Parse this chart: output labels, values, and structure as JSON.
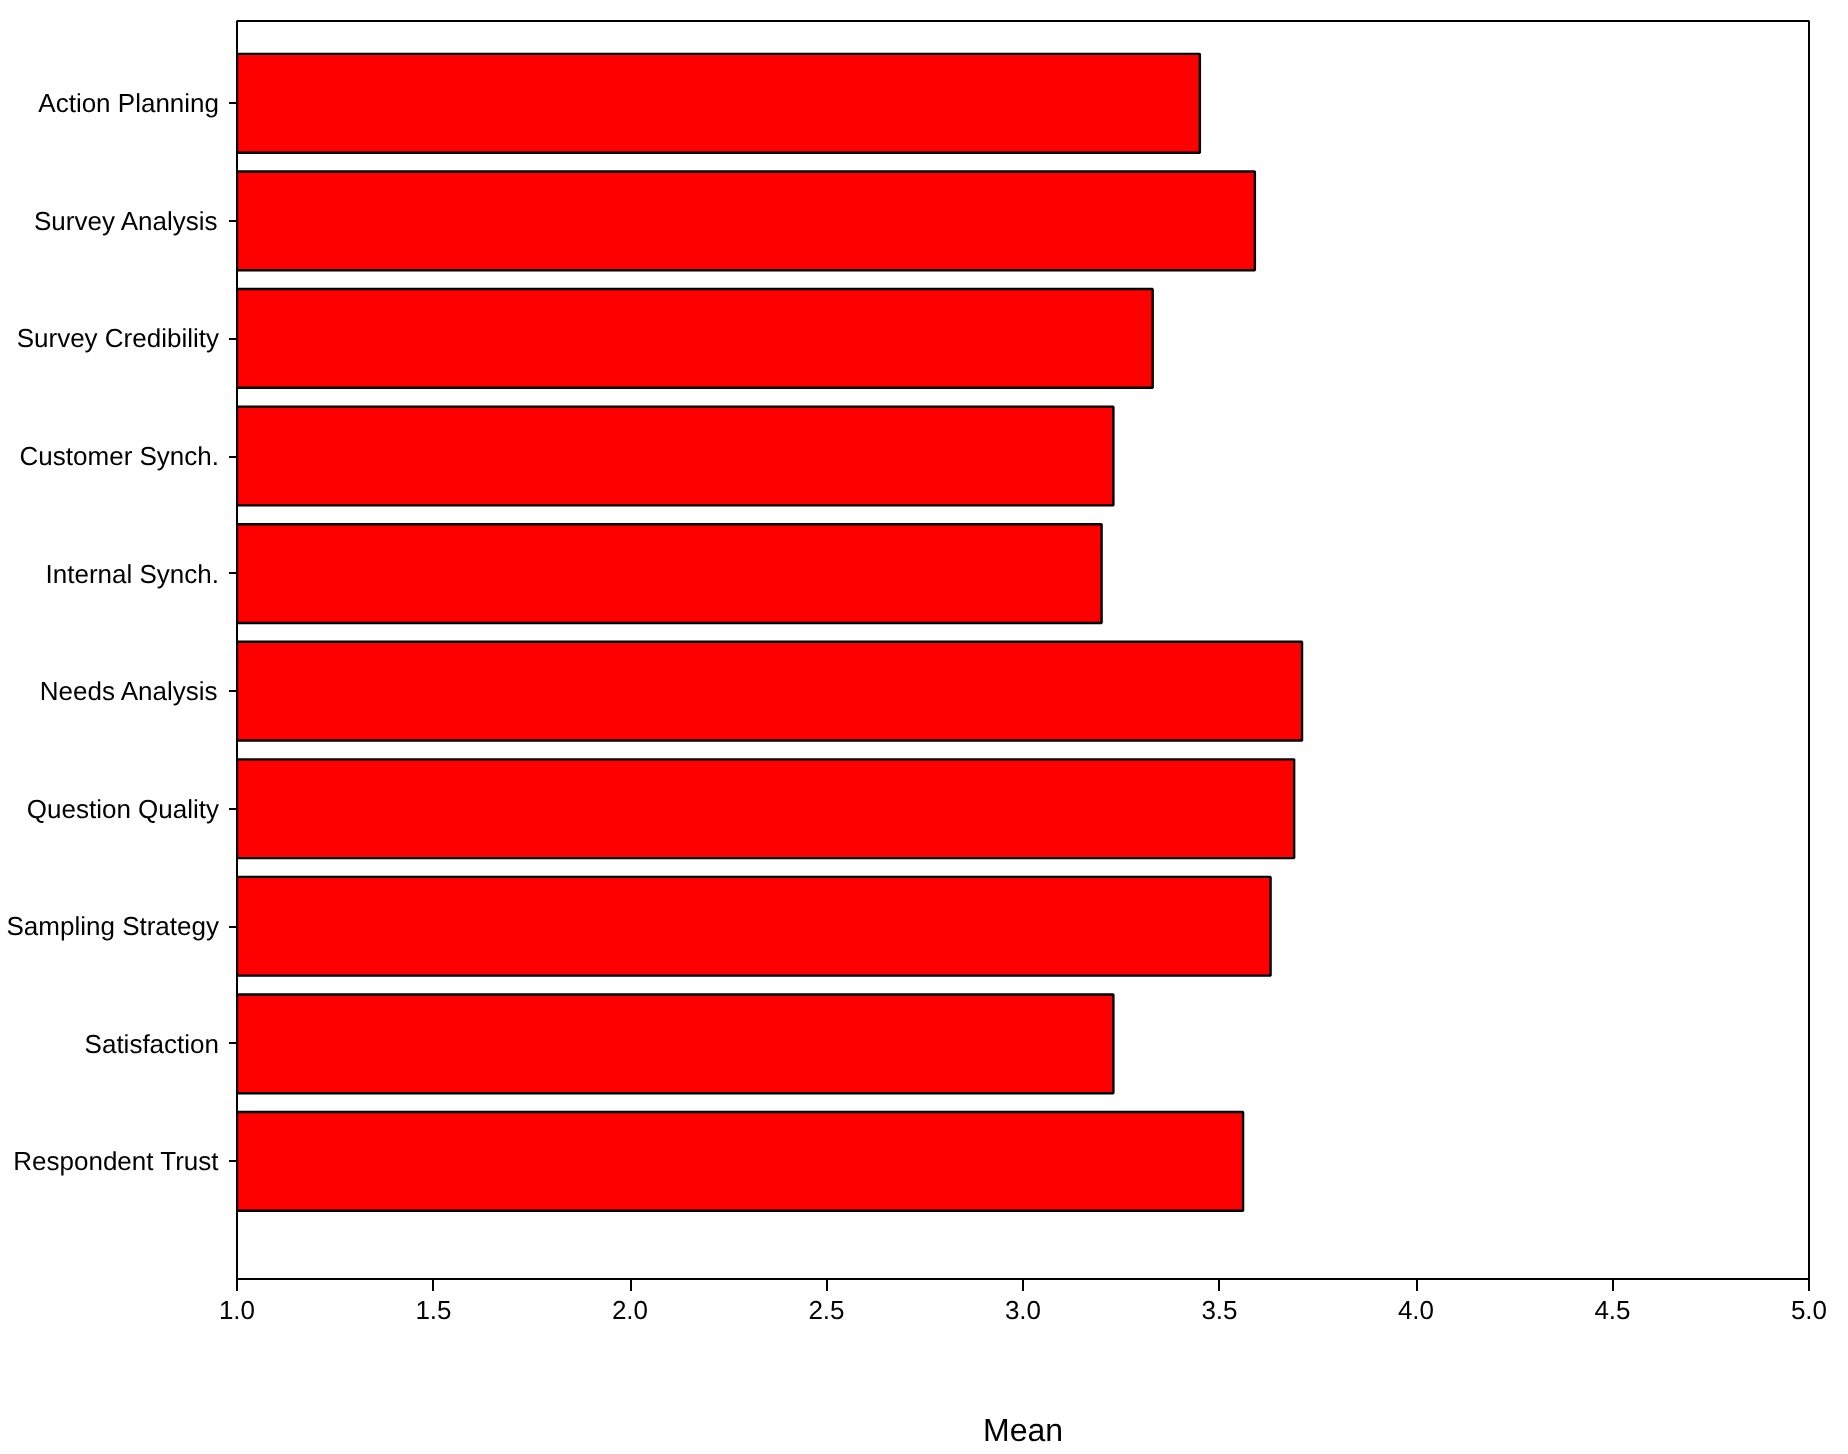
{
  "chart_data": {
    "type": "bar",
    "orientation": "horizontal",
    "xlabel": "Mean",
    "categories": [
      "Action Planning",
      "Survey Analysis",
      "Survey Credibility",
      "Customer Synch.",
      "Internal Synch.",
      "Needs Analysis",
      "Question Quality",
      "Sampling Strategy",
      "Satisfaction",
      "Respondent Trust"
    ],
    "values": [
      3.45,
      3.59,
      3.33,
      3.23,
      3.2,
      3.71,
      3.69,
      3.63,
      3.23,
      3.56
    ],
    "color": "#ff0000",
    "xlim": [
      1.0,
      5.0
    ],
    "xticks": [
      {
        "value": 1.0,
        "label": "1.0"
      },
      {
        "value": 1.5,
        "label": "1.5"
      },
      {
        "value": 2.0,
        "label": "2.0"
      },
      {
        "value": 2.5,
        "label": "2.5"
      },
      {
        "value": 3.0,
        "label": "3.0"
      },
      {
        "value": 3.5,
        "label": "3.5"
      },
      {
        "value": 4.0,
        "label": "4.0"
      },
      {
        "value": 4.5,
        "label": "4.5"
      },
      {
        "value": 5.0,
        "label": "5.0"
      }
    ],
    "grid": false
  }
}
